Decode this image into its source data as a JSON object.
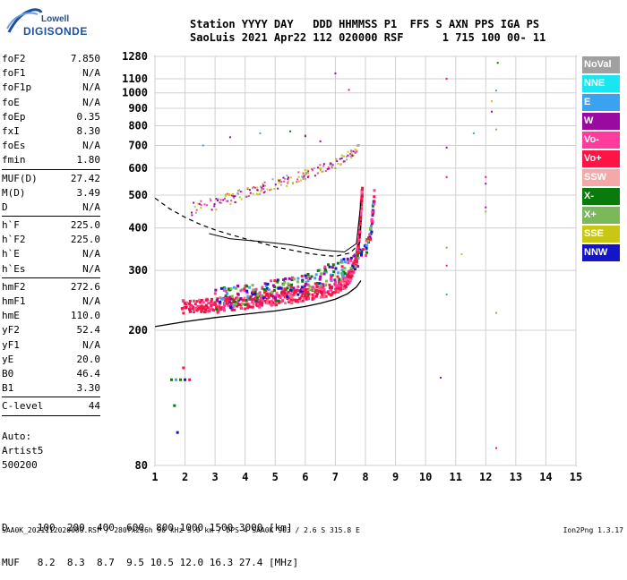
{
  "logo": {
    "brand": "Lowell",
    "product": "DIGISONDE"
  },
  "header": {
    "line1": "Station YYYY DAY   DDD HHMMSS P1  FFS S AXN PPS IGA PS",
    "line2": "SaoLuis 2021 Apr22 112 020000 RSF      1 715 100 00- 11"
  },
  "params": {
    "g1": [
      {
        "label": "foF2",
        "value": "7.850"
      },
      {
        "label": "foF1",
        "value": "N/A"
      },
      {
        "label": "foF1p",
        "value": "N/A"
      },
      {
        "label": "foE",
        "value": "N/A"
      },
      {
        "label": "foEp",
        "value": "0.35"
      },
      {
        "label": "fxI",
        "value": "8.30"
      },
      {
        "label": "foEs",
        "value": "N/A"
      },
      {
        "label": "fmin",
        "value": "1.80"
      }
    ],
    "g2": [
      {
        "label": "MUF(D)",
        "value": "27.42"
      },
      {
        "label": "M(D)",
        "value": "3.49"
      },
      {
        "label": "D",
        "value": "N/A"
      }
    ],
    "g3": [
      {
        "label": "h`F",
        "value": "225.0"
      },
      {
        "label": "h`F2",
        "value": "225.0"
      },
      {
        "label": "h`E",
        "value": "N/A"
      },
      {
        "label": "h`Es",
        "value": "N/A"
      }
    ],
    "g4": [
      {
        "label": "hmF2",
        "value": "272.6"
      },
      {
        "label": "hmF1",
        "value": "N/A"
      },
      {
        "label": "hmE",
        "value": "110.0"
      },
      {
        "label": "yF2",
        "value": "52.4"
      },
      {
        "label": "yF1",
        "value": "N/A"
      },
      {
        "label": "yE",
        "value": "20.0"
      },
      {
        "label": "B0",
        "value": "46.4"
      },
      {
        "label": "B1",
        "value": "3.30"
      }
    ],
    "g5": [
      {
        "label": "C-level",
        "value": "44"
      }
    ]
  },
  "auto": {
    "line1": "Auto:",
    "line2": "Artist5",
    "line3": "500200"
  },
  "footer": {
    "d_row": "D     100  200  400  600  800 1000 1500 3000 [km]",
    "muf_row": "MUF   8.2  8.3  8.7  9.5 10.5 12.0 16.3 27.4 [MHz]",
    "file_info": "SAA0K_2021112020000.RSF / 280fx256h 50 kHz 5.0 km / DPS-4 SAA0K 903 / 2.6 S 315.8 E",
    "version": "Ion2Png 1.3.17"
  },
  "legend": [
    {
      "label": "NoVal",
      "color": "#a0a0a0"
    },
    {
      "label": "NNE",
      "color": "#19e6f0"
    },
    {
      "label": "E",
      "color": "#3aa2f0"
    },
    {
      "label": "W",
      "color": "#9a0aa0"
    },
    {
      "label": "Vo-",
      "color": "#ff3c9e"
    },
    {
      "label": "Vo+",
      "color": "#ff1446"
    },
    {
      "label": "SSW",
      "color": "#f5a8a8"
    },
    {
      "label": "X-",
      "color": "#0a7a0a"
    },
    {
      "label": "X+",
      "color": "#7ab85a"
    },
    {
      "label": "SSE",
      "color": "#c8c814"
    },
    {
      "label": "NNW",
      "color": "#1414c8"
    }
  ],
  "chart_data": {
    "type": "scatter",
    "xlim": [
      1,
      15
    ],
    "xticks": [
      1,
      2,
      3,
      4,
      5,
      6,
      7,
      8,
      9,
      10,
      11,
      12,
      13,
      14,
      15
    ],
    "yscale": "log",
    "ylim": [
      80,
      1280
    ],
    "yticks": [
      80,
      200,
      300,
      400,
      500,
      600,
      700,
      800,
      900,
      1000,
      1100,
      1280
    ],
    "grid": true,
    "o_trace": [
      [
        1.9,
        235
      ],
      [
        2.5,
        236
      ],
      [
        3.0,
        238
      ],
      [
        3.5,
        240
      ],
      [
        4.0,
        242
      ],
      [
        4.5,
        245
      ],
      [
        5.0,
        248
      ],
      [
        5.5,
        251
      ],
      [
        6.0,
        255
      ],
      [
        6.5,
        260
      ],
      [
        7.0,
        266
      ],
      [
        7.3,
        275
      ],
      [
        7.5,
        290
      ],
      [
        7.7,
        320
      ],
      [
        7.8,
        380
      ],
      [
        7.85,
        450
      ],
      [
        7.9,
        520
      ]
    ],
    "x_trace": [
      [
        3.0,
        245
      ],
      [
        3.5,
        248
      ],
      [
        4.0,
        252
      ],
      [
        4.5,
        256
      ],
      [
        5.0,
        262
      ],
      [
        5.5,
        268
      ],
      [
        6.0,
        275
      ],
      [
        6.5,
        285
      ],
      [
        7.0,
        298
      ],
      [
        7.5,
        310
      ],
      [
        8.0,
        340
      ],
      [
        8.2,
        400
      ],
      [
        8.3,
        500
      ]
    ],
    "multihop": [
      [
        2.2,
        455
      ],
      [
        3.0,
        470
      ],
      [
        3.5,
        490
      ],
      [
        4.0,
        505
      ],
      [
        4.5,
        520
      ],
      [
        5.0,
        540
      ],
      [
        5.5,
        555
      ],
      [
        6.0,
        575
      ],
      [
        6.5,
        595
      ],
      [
        7.0,
        620
      ],
      [
        7.5,
        660
      ],
      [
        7.8,
        690
      ]
    ],
    "sparse": [
      [
        2.6,
        700
      ],
      [
        3.5,
        740
      ],
      [
        4.5,
        760
      ],
      [
        5.5,
        770
      ],
      [
        6.0,
        750
      ],
      [
        6.5,
        720
      ],
      [
        7.0,
        600
      ],
      [
        7.0,
        1140
      ],
      [
        7.45,
        1020
      ],
      [
        10.7,
        1100
      ],
      [
        10.7,
        690
      ],
      [
        10.7,
        565
      ],
      [
        10.7,
        350
      ],
      [
        10.7,
        310
      ],
      [
        10.7,
        255
      ],
      [
        10.5,
        145
      ],
      [
        11.2,
        335
      ],
      [
        11.6,
        760
      ],
      [
        12.0,
        565
      ],
      [
        12.0,
        540
      ],
      [
        12.0,
        460
      ],
      [
        12.0,
        447
      ],
      [
        12.2,
        880
      ],
      [
        12.2,
        945
      ],
      [
        12.35,
        1015
      ],
      [
        12.35,
        780
      ],
      [
        12.35,
        225
      ],
      [
        12.35,
        90
      ],
      [
        12.4,
        1225
      ],
      [
        6.0,
        745
      ]
    ],
    "e_echo": [
      [
        1.55,
        143
      ],
      [
        1.7,
        143
      ],
      [
        1.85,
        143
      ],
      [
        2.0,
        143
      ],
      [
        2.15,
        143
      ],
      [
        1.65,
        120
      ],
      [
        1.75,
        100
      ],
      [
        1.95,
        155
      ]
    ],
    "profile": [
      [
        1.0,
        205
      ],
      [
        2.0,
        212
      ],
      [
        3.0,
        218
      ],
      [
        4.0,
        223
      ],
      [
        5.0,
        228
      ],
      [
        6.0,
        235
      ],
      [
        6.5,
        240
      ],
      [
        7.0,
        247
      ],
      [
        7.4,
        256
      ],
      [
        7.7,
        268
      ],
      [
        7.85,
        280
      ]
    ],
    "dashed": [
      [
        1.0,
        490
      ],
      [
        1.5,
        455
      ],
      [
        2.0,
        430
      ],
      [
        2.5,
        410
      ],
      [
        3.0,
        395
      ],
      [
        3.5,
        383
      ],
      [
        4.0,
        372
      ],
      [
        4.5,
        362
      ],
      [
        5.0,
        352
      ],
      [
        5.5,
        345
      ],
      [
        6.0,
        338
      ],
      [
        6.5,
        333
      ],
      [
        7.0,
        330
      ],
      [
        7.5,
        338
      ],
      [
        7.8,
        360
      ],
      [
        7.85,
        420
      ]
    ],
    "upper_curve": [
      [
        2.8,
        385
      ],
      [
        3.5,
        372
      ],
      [
        4.5,
        365
      ],
      [
        5.5,
        357
      ],
      [
        6.5,
        345
      ],
      [
        7.3,
        340
      ],
      [
        7.7,
        360
      ],
      [
        7.85,
        480
      ]
    ]
  }
}
